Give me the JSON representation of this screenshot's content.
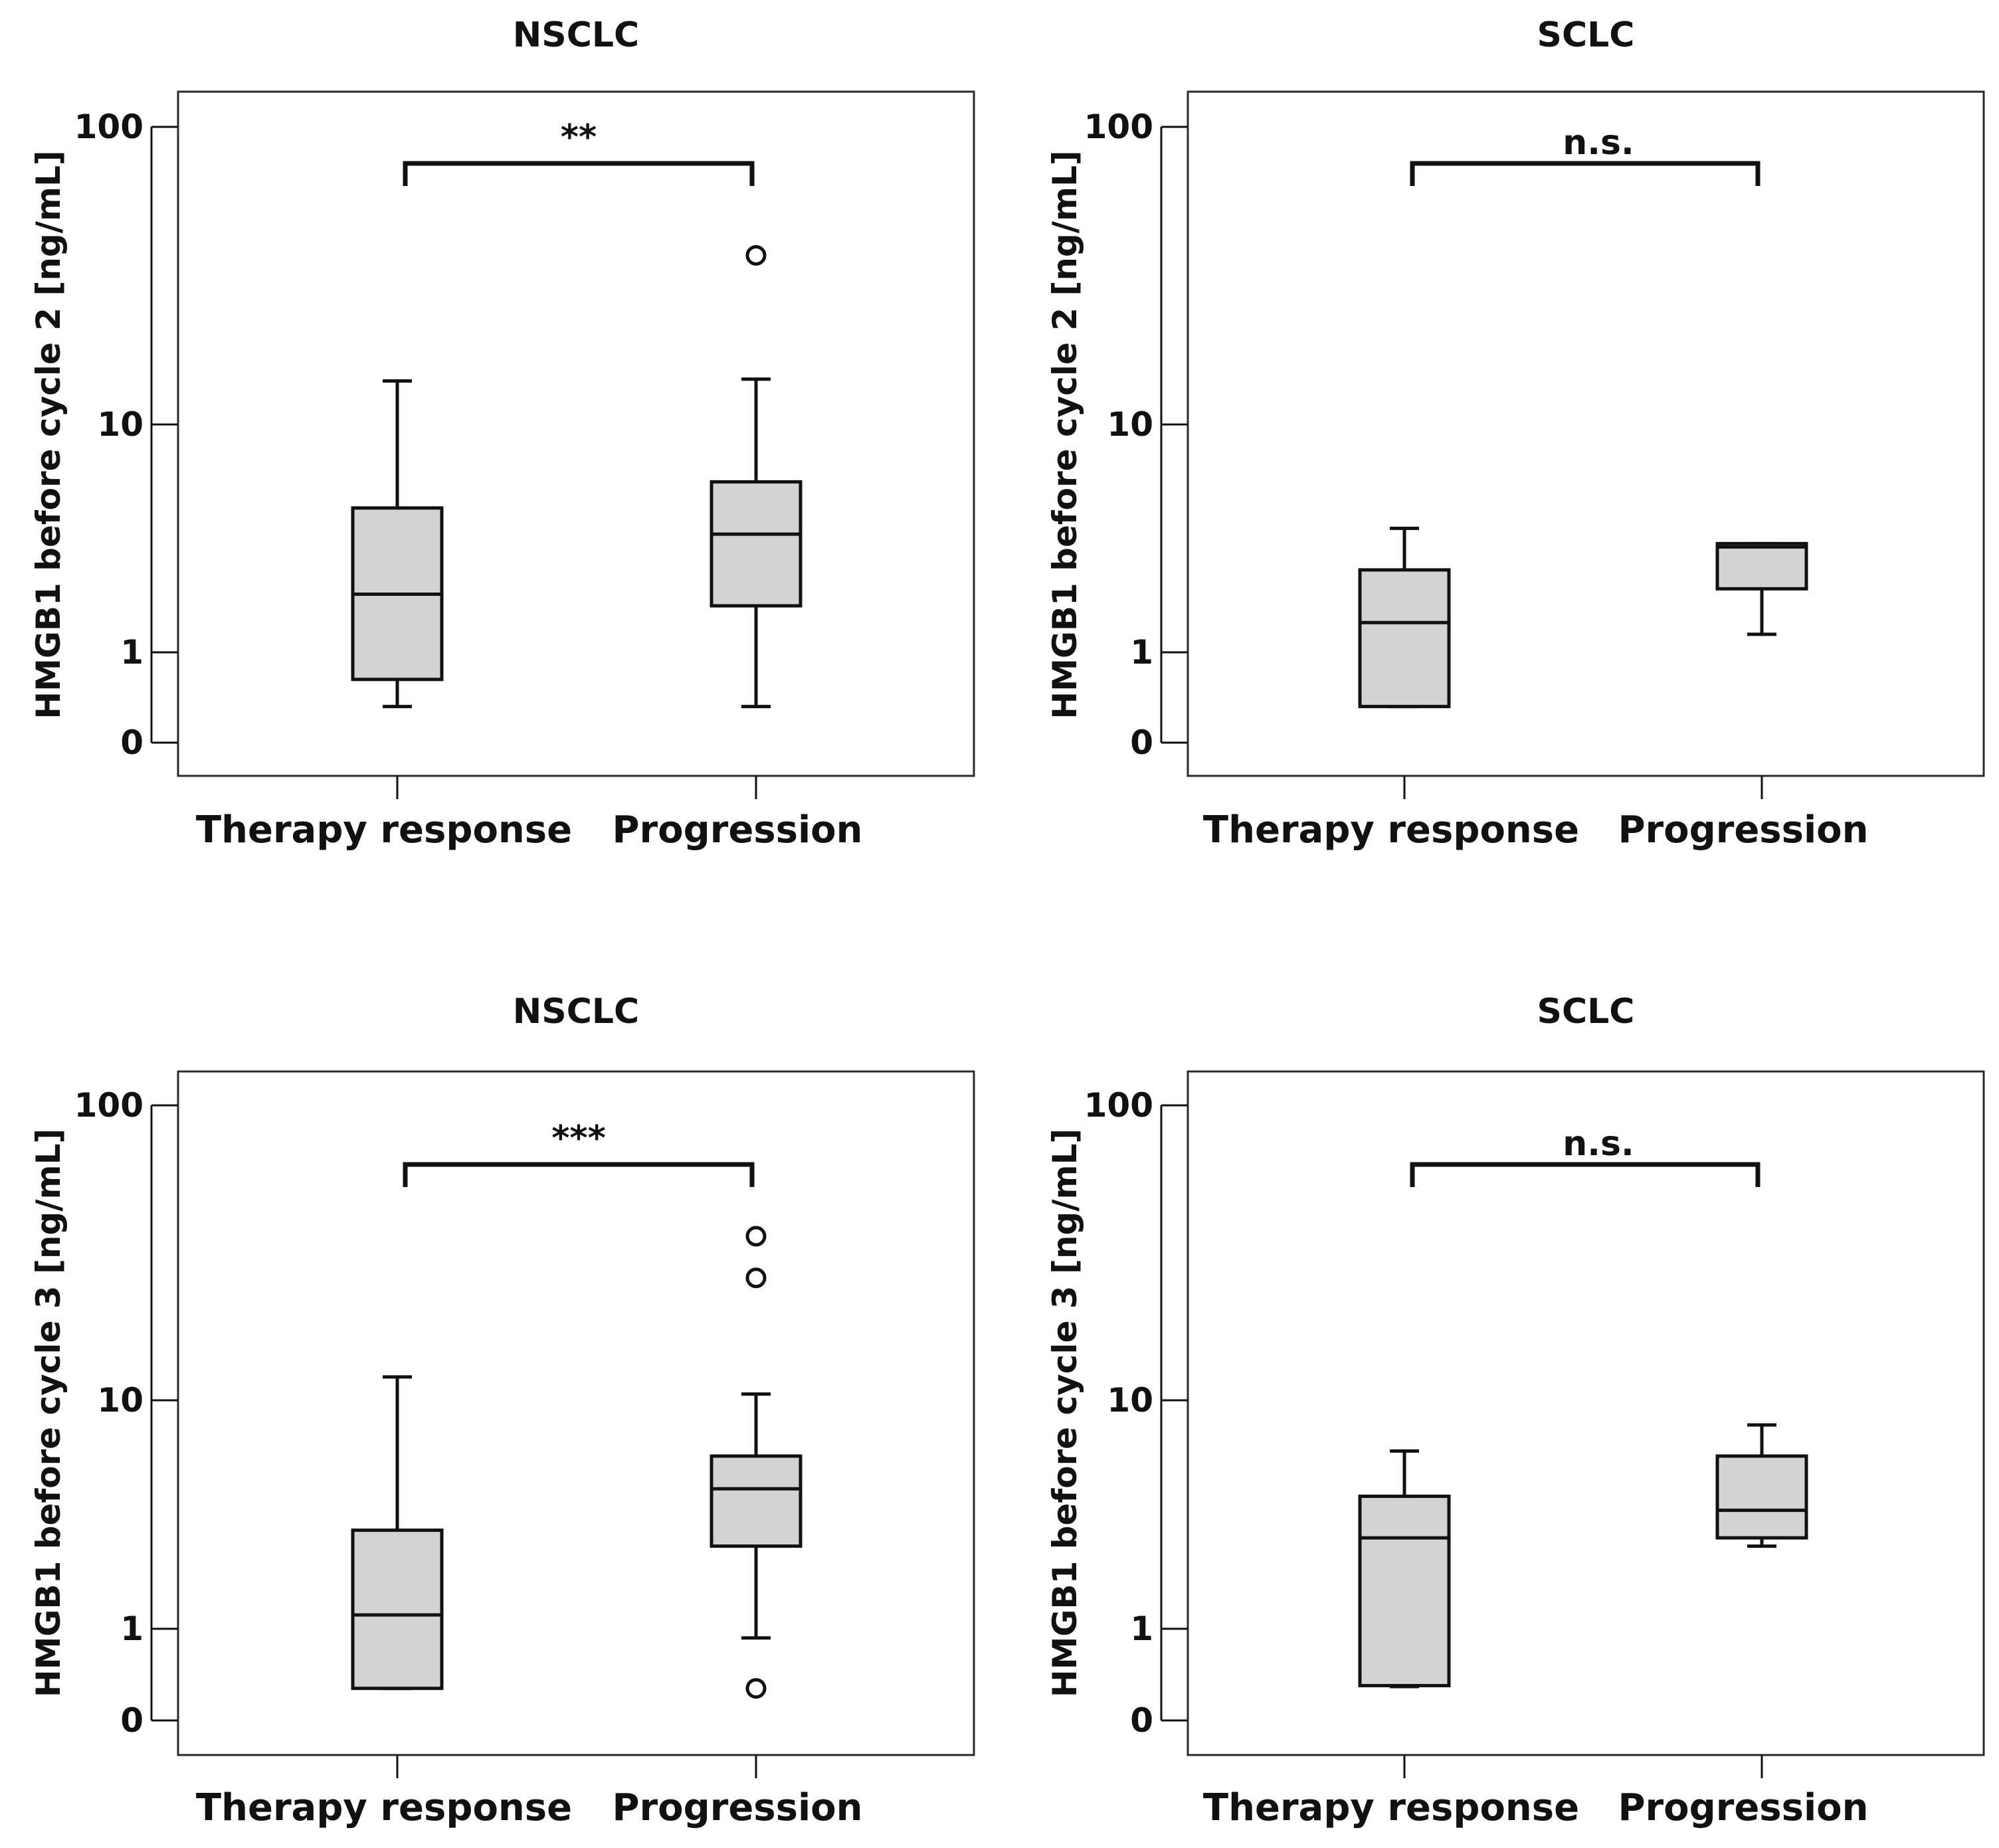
{
  "chart_data": [
    {
      "type": "box",
      "title": "NSCLC",
      "ylabel": "HMGB1 before cycle 2 [ng/mL]",
      "yscale": "log-like",
      "yticks": [
        0,
        1,
        10,
        100
      ],
      "ytick_labels": [
        "0",
        "1",
        "10",
        "100"
      ],
      "categories": [
        "Therapy response",
        "Progression"
      ],
      "boxes": [
        {
          "category": "Therapy response",
          "whisker_low": 0.4,
          "q1": 0.7,
          "median": 1.8,
          "q3": 4.3,
          "whisker_high": 14.0,
          "outliers": []
        },
        {
          "category": "Progression",
          "whisker_low": 0.4,
          "q1": 1.6,
          "median": 3.3,
          "q3": 5.6,
          "whisker_high": 14.2,
          "outliers": [
            37
          ]
        }
      ],
      "significance": "**"
    },
    {
      "type": "box",
      "title": "SCLC",
      "ylabel": "HMGB1 before cycle 2 [ng/mL]",
      "yscale": "log-like",
      "yticks": [
        0,
        1,
        10,
        100
      ],
      "ytick_labels": [
        "0",
        "1",
        "10",
        "100"
      ],
      "categories": [
        "Therapy response",
        "Progression"
      ],
      "boxes": [
        {
          "category": "Therapy response",
          "whisker_low": 0.4,
          "q1": 0.4,
          "median": 1.35,
          "q3": 2.3,
          "whisker_high": 3.5,
          "outliers": []
        },
        {
          "category": "Progression",
          "whisker_low": 1.2,
          "q1": 1.9,
          "median": 2.9,
          "q3": 3.0,
          "whisker_high": 3.0,
          "outliers": []
        }
      ],
      "significance": "n.s."
    },
    {
      "type": "box",
      "title": "NSCLC",
      "ylabel": "HMGB1 before cycle 3 [ng/mL]",
      "yscale": "log-like",
      "yticks": [
        0,
        1,
        10,
        100
      ],
      "ytick_labels": [
        "0",
        "1",
        "10",
        "100"
      ],
      "categories": [
        "Therapy response",
        "Progression"
      ],
      "boxes": [
        {
          "category": "Therapy response",
          "whisker_low": 0.35,
          "q1": 0.35,
          "median": 1.15,
          "q3": 2.7,
          "whisker_high": 12.0,
          "outliers": []
        },
        {
          "category": "Progression",
          "whisker_low": 0.9,
          "q1": 2.3,
          "median": 4.1,
          "q3": 5.7,
          "whisker_high": 10.5,
          "outliers": [
            0.35,
            26,
            36
          ]
        }
      ],
      "significance": "***"
    },
    {
      "type": "box",
      "title": "SCLC",
      "ylabel": "HMGB1 before cycle 3 [ng/mL]",
      "yscale": "log-like",
      "yticks": [
        0,
        1,
        10,
        100
      ],
      "ytick_labels": [
        "0",
        "1",
        "10",
        "100"
      ],
      "categories": [
        "Therapy response",
        "Progression"
      ],
      "boxes": [
        {
          "category": "Therapy response",
          "whisker_low": 0.37,
          "q1": 0.38,
          "median": 2.5,
          "q3": 3.8,
          "whisker_high": 6.0,
          "outliers": []
        },
        {
          "category": "Progression",
          "whisker_low": 2.3,
          "q1": 2.5,
          "median": 3.3,
          "q3": 5.7,
          "whisker_high": 7.8,
          "outliers": []
        }
      ],
      "significance": "n.s."
    }
  ]
}
